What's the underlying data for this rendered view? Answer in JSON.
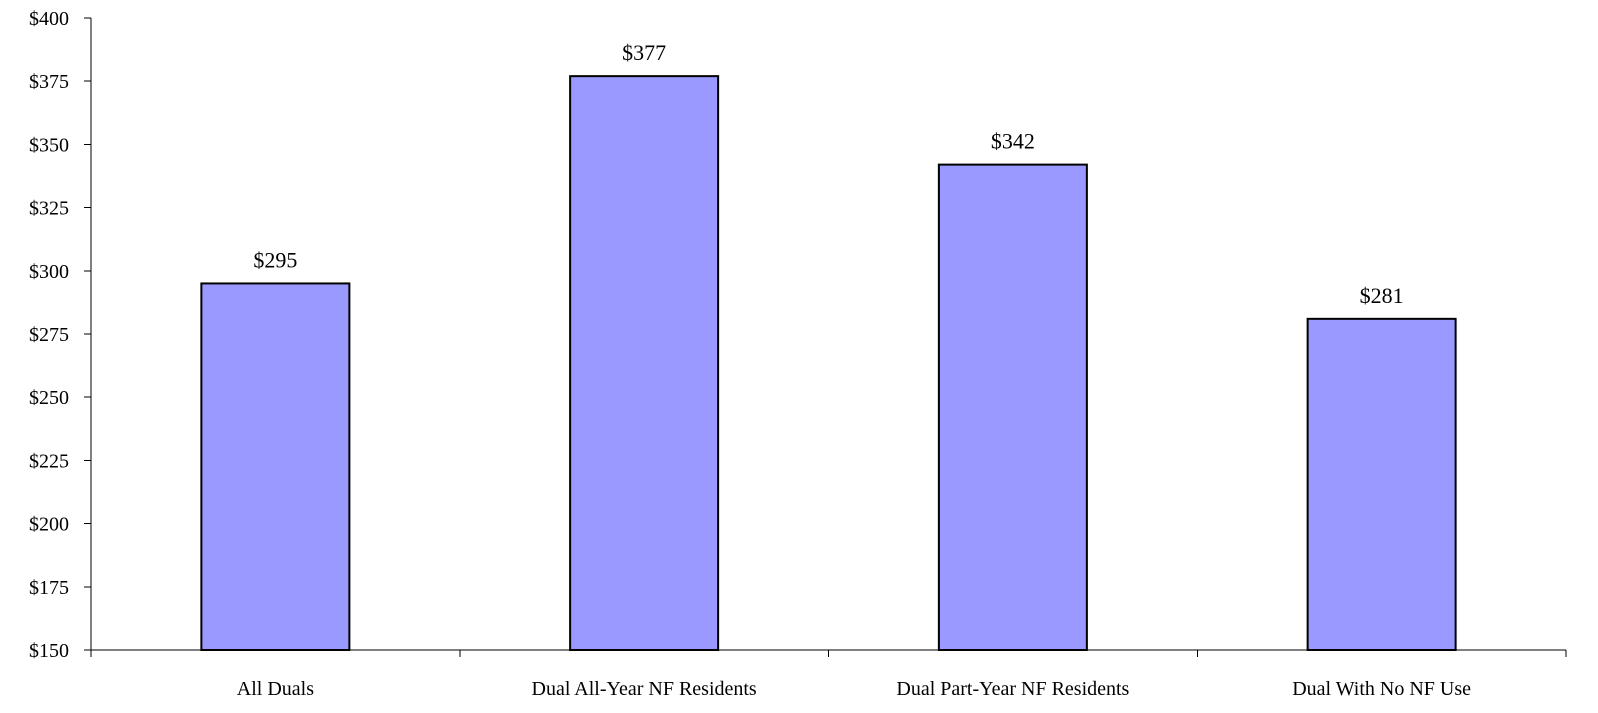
{
  "chart_data": {
    "type": "bar",
    "title": "",
    "xlabel": "",
    "ylabel": "",
    "categories": [
      "All Duals",
      "Dual All-Year NF Residents",
      "Dual Part-Year NF Residents",
      "Dual With No NF Use"
    ],
    "values": [
      295,
      377,
      342,
      281
    ],
    "value_labels": [
      "$295",
      "$377",
      "$342",
      "$281"
    ],
    "ylim": [
      150,
      400
    ],
    "y_ticks": [
      150,
      175,
      200,
      225,
      250,
      275,
      300,
      325,
      350,
      375,
      400
    ],
    "y_tick_labels": [
      "$150",
      "$175",
      "$200",
      "$225",
      "$250",
      "$275",
      "$300",
      "$325",
      "$350",
      "$375",
      "$400"
    ],
    "grid": false,
    "legend": "none",
    "bar_color": "#9999ff",
    "bar_edge_color": "#000000"
  }
}
